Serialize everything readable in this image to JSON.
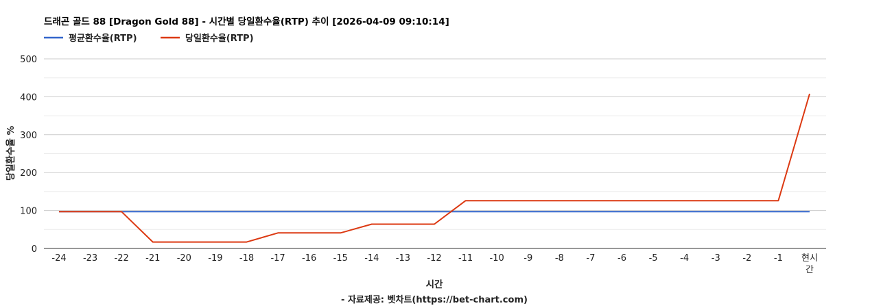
{
  "chart_data": {
    "type": "line",
    "title": "드래곤 골드 88 [Dragon Gold 88] - 시간별 당일환수율(RTP) 추이 [2026-04-09 09:10:14]",
    "xlabel": "시간",
    "ylabel": "당일환수율 %",
    "source_note": "- 자료제공: 벳차트(https://bet-chart.com)",
    "categories": [
      "-24",
      "-23",
      "-22",
      "-21",
      "-20",
      "-19",
      "-18",
      "-17",
      "-16",
      "-15",
      "-14",
      "-13",
      "-12",
      "-11",
      "-10",
      "-9",
      "-8",
      "-7",
      "-6",
      "-5",
      "-4",
      "-3",
      "-2",
      "-1",
      "현시간"
    ],
    "last_category_lines": [
      "현시",
      "간"
    ],
    "ylim": [
      0,
      500
    ],
    "yticks": [
      0,
      100,
      200,
      300,
      400,
      500
    ],
    "grid": true,
    "legend_position": "top-left",
    "series": [
      {
        "name": "평균환수율(RTP)",
        "color": "#3366cc",
        "values": [
          97,
          97,
          97,
          97,
          97,
          97,
          97,
          97,
          97,
          97,
          97,
          97,
          97,
          97,
          97,
          97,
          97,
          97,
          97,
          97,
          97,
          97,
          97,
          97,
          97
        ]
      },
      {
        "name": "당일환수율(RTP)",
        "color": "#dc3912",
        "values": [
          97,
          97,
          97,
          17,
          17,
          17,
          17,
          41,
          41,
          41,
          64,
          64,
          64,
          126,
          126,
          126,
          126,
          126,
          126,
          126,
          126,
          126,
          126,
          126,
          408
        ]
      }
    ]
  }
}
